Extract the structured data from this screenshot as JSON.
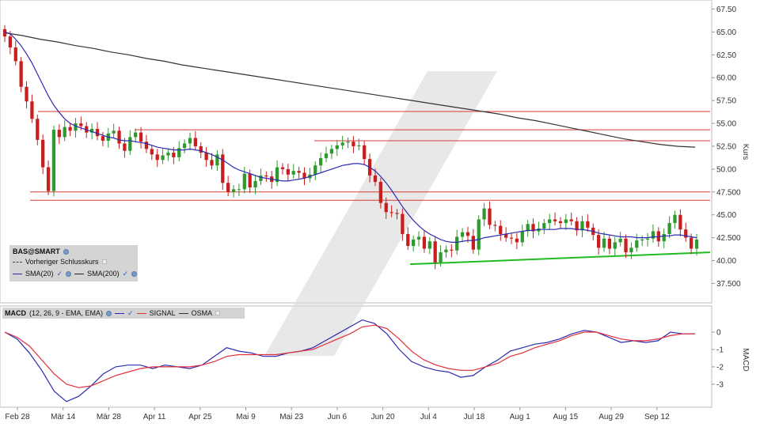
{
  "colors": {
    "up": "#2e9a2e",
    "down": "#c81e1e",
    "sma20": "#2b2bb0",
    "sma200": "#333333",
    "macd": "#2b2bb0",
    "signal": "#e0303a",
    "resistance": "#d83a3a",
    "support": "#22bb22"
  },
  "legend": {
    "symbol": "BAS@SMART",
    "prev_close": "Vorheriger Schlusskurs",
    "sma20": "SMA(20)",
    "sma200": "SMA(200)",
    "macd_label": "MACD",
    "macd_params": "(12, 26, 9 - EMA, EMA)",
    "signal": "SIGNAL",
    "osma": "OSMA"
  },
  "chart_data": [
    {
      "type": "candlestick",
      "title": "",
      "ylabel": "Kurs",
      "ylim": [
        36.5,
        67.8
      ],
      "yticks": [
        "67.50",
        "65.00",
        "62.50",
        "60.00",
        "57.50",
        "55.00",
        "52.50",
        "50.00",
        "47.500",
        "45.00",
        "42.500",
        "40.00",
        "37.500"
      ],
      "xticks": [
        "Feb 28",
        "Mär 14",
        "Mär 28",
        "Apr 11",
        "Apr 25",
        "Mai 9",
        "Mai 23",
        "Jun 6",
        "Jun 20",
        "Jul 4",
        "Jul 18",
        "Aug 1",
        "Aug 15",
        "Aug 29",
        "Sep 12"
      ],
      "grid": false,
      "close": [
        64.5,
        63.3,
        61.8,
        59.0,
        57.4,
        55.5,
        53.2,
        50.2,
        47.6,
        54.3,
        53.5,
        54.6,
        54.2,
        55.0,
        54.7,
        54.0,
        54.4,
        53.6,
        53.1,
        53.9,
        54.2,
        52.8,
        52.0,
        53.5,
        54.0,
        53.0,
        52.2,
        51.6,
        51.0,
        51.5,
        51.8,
        51.3,
        52.3,
        52.8,
        53.4,
        52.5,
        51.8,
        51.0,
        50.4,
        51.6,
        48.5,
        47.5,
        47.8,
        47.8,
        49.5,
        48.0,
        48.7,
        49.3,
        49.2,
        48.6,
        50.2,
        50.0,
        49.4,
        49.8,
        49.6,
        49.0,
        49.4,
        50.4,
        51.2,
        51.7,
        52.2,
        52.6,
        52.9,
        53.0,
        52.5,
        52.6,
        51.1,
        49.3,
        48.6,
        46.3,
        45.3,
        45.2,
        45.1,
        42.9,
        41.6,
        42.3,
        42.6,
        41.3,
        42.1,
        39.8,
        40.9,
        41.2,
        41.1,
        42.6,
        43.1,
        42.7,
        41.2,
        44.5,
        45.7,
        43.9,
        43.8,
        42.9,
        42.5,
        42.4,
        42.0,
        43.2,
        44.0,
        43.2,
        43.5,
        44.1,
        44.5,
        44.3,
        44.1,
        44.5,
        44.3,
        43.3,
        44.3,
        43.6,
        42.8,
        41.4,
        42.4,
        41.3,
        42.0,
        42.4,
        40.9,
        41.4,
        42.2,
        42.3,
        42.4,
        43.2,
        42.1,
        42.9,
        44.1,
        45.0,
        43.4,
        42.5,
        41.3,
        42.3
      ],
      "sma20": [
        65.0,
        64.8,
        64.2,
        63.5,
        62.6,
        61.6,
        60.4,
        59.2,
        58.0,
        57.0,
        56.2,
        55.5,
        55.0,
        54.7,
        54.5,
        54.3,
        54.1,
        53.9,
        53.7,
        53.5,
        53.4,
        53.2,
        53.1,
        53.1,
        53.0,
        52.9,
        52.8,
        52.6,
        52.4,
        52.3,
        52.2,
        52.1,
        52.1,
        52.1,
        52.2,
        52.1,
        52.0,
        51.8,
        51.6,
        51.3,
        51.0,
        50.6,
        50.2,
        49.9,
        49.7,
        49.5,
        49.3,
        49.1,
        49.0,
        48.9,
        48.8,
        48.7,
        48.7,
        48.8,
        48.9,
        49.0,
        49.2,
        49.4,
        49.6,
        49.8,
        50.0,
        50.2,
        50.4,
        50.5,
        50.6,
        50.6,
        50.5,
        50.2,
        49.8,
        49.2,
        48.5,
        47.7,
        46.8,
        45.9,
        45.1,
        44.4,
        43.8,
        43.3,
        42.9,
        42.6,
        42.3,
        42.1,
        42.0,
        42.0,
        42.1,
        42.2,
        42.2,
        42.3,
        42.5,
        42.6,
        42.7,
        42.8,
        42.9,
        43.0,
        43.1,
        43.2,
        43.3,
        43.3,
        43.4,
        43.4,
        43.4,
        43.4,
        43.5,
        43.5,
        43.5,
        43.4,
        43.4,
        43.3,
        43.2,
        43.0,
        42.9,
        42.8,
        42.7,
        42.6,
        42.6,
        42.6,
        42.5,
        42.5,
        42.5,
        42.6,
        42.6,
        42.7,
        42.7,
        42.8,
        42.8,
        42.7,
        42.6,
        42.5
      ],
      "sma200": [
        64.9,
        64.6,
        64.2,
        63.9,
        63.5,
        63.2,
        62.8,
        62.5,
        62.1,
        61.8,
        61.4,
        61.1,
        60.8,
        60.5,
        60.2,
        59.9,
        59.6,
        59.3,
        59.0,
        58.7,
        58.4,
        58.1,
        57.8,
        57.5,
        57.2,
        56.9,
        56.6,
        56.3,
        56.0,
        55.6,
        55.3,
        54.9,
        54.5,
        54.1,
        53.7,
        53.3,
        53.0,
        52.7,
        52.5,
        52.4
      ],
      "resistance_lines": [
        56.3,
        54.3,
        53.1,
        47.5,
        46.6
      ],
      "support_line": {
        "from": 39.6,
        "to": 40.9
      }
    },
    {
      "type": "line",
      "title": "",
      "ylabel": "MACD",
      "ylim": [
        -4.1,
        1.0
      ],
      "yticks": [
        "0",
        "-1",
        "-2",
        "-3"
      ],
      "series": [
        {
          "name": "MACD",
          "values": [
            0,
            -0.4,
            -1.2,
            -2.2,
            -3.4,
            -4.0,
            -3.7,
            -3.1,
            -2.4,
            -2.0,
            -1.9,
            -1.9,
            -2.1,
            -1.9,
            -2.0,
            -2.1,
            -1.9,
            -1.4,
            -0.9,
            -1.1,
            -1.2,
            -1.4,
            -1.4,
            -1.2,
            -1.1,
            -0.9,
            -0.5,
            -0.1,
            0.3,
            0.7,
            0.5,
            -0.1,
            -1.0,
            -1.7,
            -2.0,
            -2.2,
            -2.3,
            -2.6,
            -2.5,
            -2.0,
            -1.6,
            -1.1,
            -0.9,
            -0.7,
            -0.6,
            -0.4,
            -0.1,
            0.1,
            0.0,
            -0.3,
            -0.6,
            -0.5,
            -0.6,
            -0.5,
            0.0,
            -0.1,
            -0.1
          ]
        },
        {
          "name": "SIGNAL",
          "values": [
            0,
            -0.3,
            -0.8,
            -1.6,
            -2.4,
            -3.0,
            -3.2,
            -3.1,
            -2.8,
            -2.5,
            -2.3,
            -2.1,
            -2.0,
            -2.0,
            -2.0,
            -2.0,
            -1.9,
            -1.7,
            -1.4,
            -1.3,
            -1.3,
            -1.3,
            -1.3,
            -1.2,
            -1.1,
            -1.0,
            -0.7,
            -0.4,
            -0.1,
            0.3,
            0.4,
            0.2,
            -0.4,
            -1.1,
            -1.6,
            -1.9,
            -2.1,
            -2.2,
            -2.2,
            -2.0,
            -1.8,
            -1.4,
            -1.2,
            -0.9,
            -0.7,
            -0.5,
            -0.2,
            0.0,
            0.0,
            -0.2,
            -0.4,
            -0.5,
            -0.5,
            -0.4,
            -0.2,
            -0.1,
            -0.1
          ]
        }
      ]
    }
  ]
}
